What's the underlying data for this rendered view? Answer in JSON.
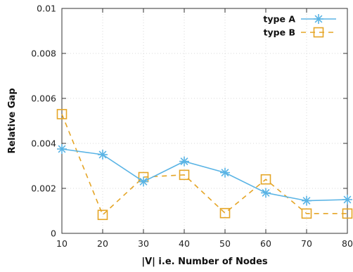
{
  "chart_data": {
    "type": "line",
    "xlabel": "|V| i.e. Number of Nodes",
    "ylabel": "Relative Gap",
    "xlim": [
      10,
      80
    ],
    "ylim": [
      0,
      0.01
    ],
    "xticks": [
      10,
      20,
      30,
      40,
      50,
      60,
      70,
      80
    ],
    "yticks": [
      0,
      0.002,
      0.004,
      0.006,
      0.008,
      0.01
    ],
    "ytick_labels": [
      "0",
      "0.002",
      "0.004",
      "0.006",
      "0.008",
      "0.01"
    ],
    "grid": true,
    "legend_position": "top-right",
    "x": [
      10,
      20,
      30,
      40,
      50,
      60,
      70,
      80
    ],
    "series": [
      {
        "name": "type A",
        "color": "#5ab4e5",
        "line_style": "solid",
        "marker": "asterisk",
        "values": [
          0.00375,
          0.0035,
          0.0023,
          0.0032,
          0.0027,
          0.0018,
          0.00145,
          0.0015
        ]
      },
      {
        "name": "type B",
        "color": "#e5a526",
        "line_style": "dashed",
        "marker": "square",
        "values": [
          0.0053,
          0.00082,
          0.0025,
          0.0026,
          0.0009,
          0.0024,
          0.00088,
          0.00088
        ]
      }
    ]
  }
}
